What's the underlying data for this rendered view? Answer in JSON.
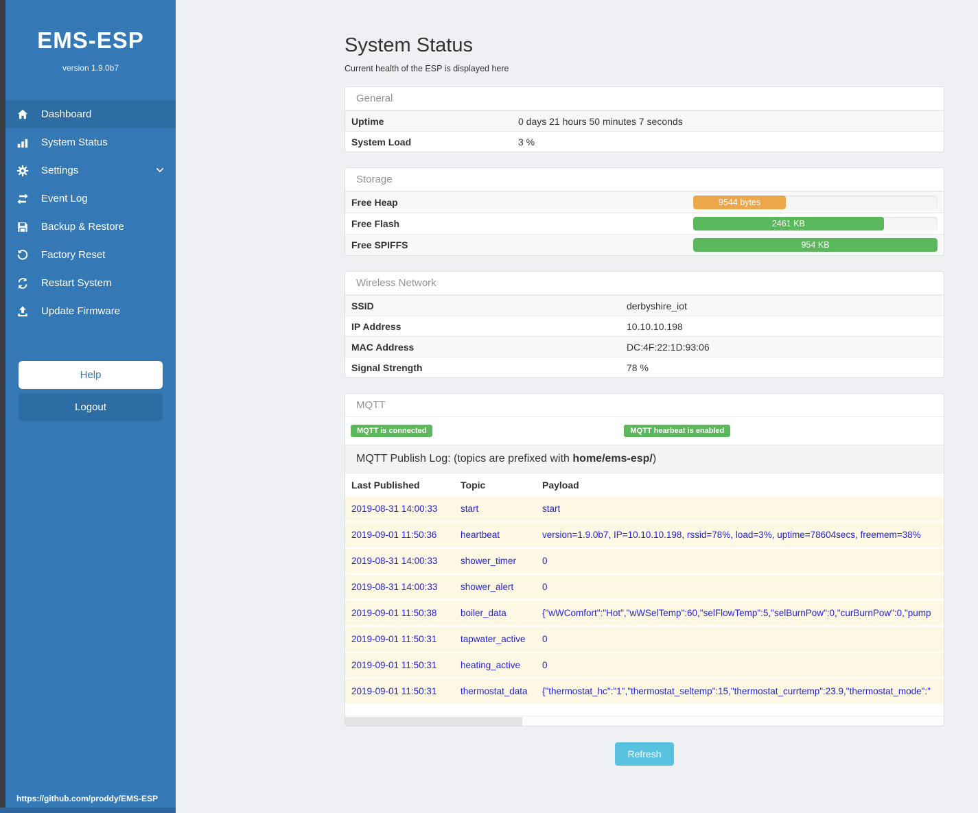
{
  "sidebar": {
    "brand": "EMS-ESP",
    "version": "version 1.9.0b7",
    "items": [
      {
        "icon": "home-icon",
        "label": "Dashboard",
        "active": true
      },
      {
        "icon": "chart-bars-icon",
        "label": "System Status",
        "active": false
      },
      {
        "icon": "gear-icon",
        "label": "Settings",
        "active": false,
        "chevron": "down"
      },
      {
        "icon": "exchange-arrows-icon",
        "label": "Event Log",
        "active": false
      },
      {
        "icon": "floppy-save-icon",
        "label": "Backup & Restore",
        "active": false
      },
      {
        "icon": "undo-circle-icon",
        "label": "Factory Reset",
        "active": false
      },
      {
        "icon": "sync-arrows-icon",
        "label": "Restart System",
        "active": false
      },
      {
        "icon": "upload-icon",
        "label": "Update Firmware",
        "active": false
      }
    ],
    "help_label": "Help",
    "logout_label": "Logout",
    "footer_link": "https://github.com/proddy/EMS-ESP"
  },
  "page": {
    "title": "System Status",
    "subtitle": "Current health of the ESP is displayed here"
  },
  "general": {
    "title": "General",
    "rows": [
      {
        "label": "Uptime",
        "value": "0 days 21 hours 50 minutes 7 seconds"
      },
      {
        "label": "System Load",
        "value": "3 %"
      }
    ]
  },
  "storage": {
    "title": "Storage",
    "rows": [
      {
        "label": "Free Heap",
        "bar_label": "9544 bytes",
        "percent": 38,
        "color": "#eda74b"
      },
      {
        "label": "Free Flash",
        "bar_label": "2461 KB",
        "percent": 78,
        "color": "#5cb85c"
      },
      {
        "label": "Free SPIFFS",
        "bar_label": "954 KB",
        "percent": 100,
        "color": "#5cb85c"
      }
    ]
  },
  "wireless": {
    "title": "Wireless Network",
    "rows": [
      {
        "label": "SSID",
        "value": "derbyshire_iot"
      },
      {
        "label": "IP Address",
        "value": "10.10.10.198"
      },
      {
        "label": "MAC Address",
        "value": "DC:4F:22:1D:93:06"
      },
      {
        "label": "Signal Strength",
        "value": "78 %"
      }
    ]
  },
  "mqtt": {
    "title": "MQTT",
    "badges": [
      {
        "label": "MQTT is connected",
        "color": "#5cb85c"
      },
      {
        "label": "MQTT hearbeat is enabled",
        "color": "#5cb85c"
      }
    ],
    "publish_log_text": "MQTT Publish Log: (topics are prefixed with ",
    "publish_log_prefix": "home/ems-esp/",
    "publish_log_close": ")",
    "columns": [
      "Last Published",
      "Topic",
      "Payload"
    ],
    "rows": [
      {
        "time": "2019-08-31 14:00:33",
        "topic": "start",
        "payload": "start"
      },
      {
        "time": "2019-09-01 11:50:36",
        "topic": "heartbeat",
        "payload": "version=1.9.0b7, IP=10.10.10.198, rssid=78%, load=3%, uptime=78604secs, freemem=38%"
      },
      {
        "time": "2019-08-31 14:00:33",
        "topic": "shower_timer",
        "payload": "0"
      },
      {
        "time": "2019-08-31 14:00:33",
        "topic": "shower_alert",
        "payload": "0"
      },
      {
        "time": "2019-09-01 11:50:38",
        "topic": "boiler_data",
        "payload": "{\"wWComfort\":\"Hot\",\"wWSelTemp\":60,\"selFlowTemp\":5,\"selBurnPow\":0,\"curBurnPow\":0,\"pump"
      },
      {
        "time": "2019-09-01 11:50:31",
        "topic": "tapwater_active",
        "payload": "0"
      },
      {
        "time": "2019-09-01 11:50:31",
        "topic": "heating_active",
        "payload": "0"
      },
      {
        "time": "2019-09-01 11:50:31",
        "topic": "thermostat_data",
        "payload": "{\"thermostat_hc\":\"1\",\"thermostat_seltemp\":15,\"thermostat_currtemp\":23.9,\"thermostat_mode\":\""
      }
    ]
  },
  "refresh_label": "Refresh",
  "colors": {
    "sidebar_blue": "#3478b5",
    "active_item_blue": "#2d6da3",
    "success_green": "#5cb85c",
    "warning_orange": "#eda74b",
    "info_button_blue": "#58c1df",
    "log_row_cream": "#fcf8e3",
    "log_text_blue": "#2222dd"
  }
}
